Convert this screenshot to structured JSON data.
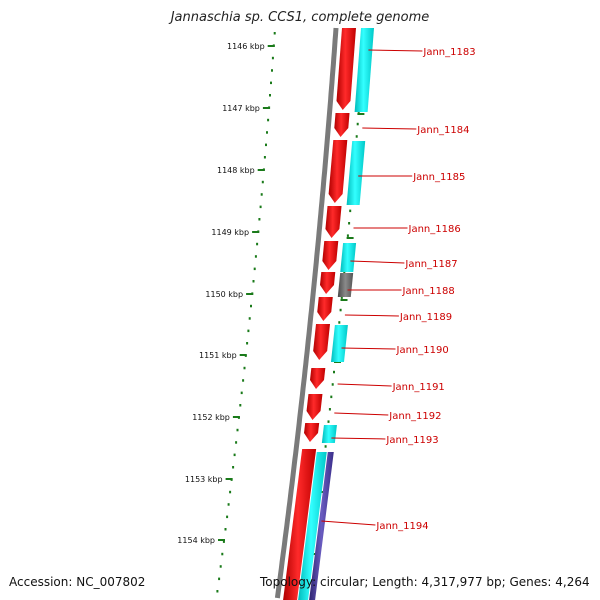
{
  "title": "Jannaschia sp. CCS1, complete genome",
  "footer": {
    "accession": "Accession: NC_007802",
    "topology": "Topology: circular; Length: 4,317,977 bp; Genes: 4,264"
  },
  "colors": {
    "backbone": "#7a7a7a",
    "forward_cds": "#ff0000",
    "reverse_feature": "#00e0e0",
    "other_feature": "#666666",
    "purple_feature": "#4b3a9a",
    "ticks": "#1a7a1a",
    "labels": "#cc0000"
  },
  "scale": {
    "unit": "kbp",
    "tick_labels": [
      "1146 kbp",
      "1147 kbp",
      "1148 kbp",
      "1149 kbp",
      "1150 kbp",
      "1151 kbp",
      "1152 kbp",
      "1153 kbp",
      "1154 kbp"
    ]
  },
  "genes": [
    {
      "name": "Jann_1183"
    },
    {
      "name": "Jann_1184"
    },
    {
      "name": "Jann_1185"
    },
    {
      "name": "Jann_1186"
    },
    {
      "name": "Jann_1187"
    },
    {
      "name": "Jann_1188"
    },
    {
      "name": "Jann_1189"
    },
    {
      "name": "Jann_1190"
    },
    {
      "name": "Jann_1191"
    },
    {
      "name": "Jann_1192"
    },
    {
      "name": "Jann_1193"
    },
    {
      "name": "Jann_1194"
    }
  ]
}
